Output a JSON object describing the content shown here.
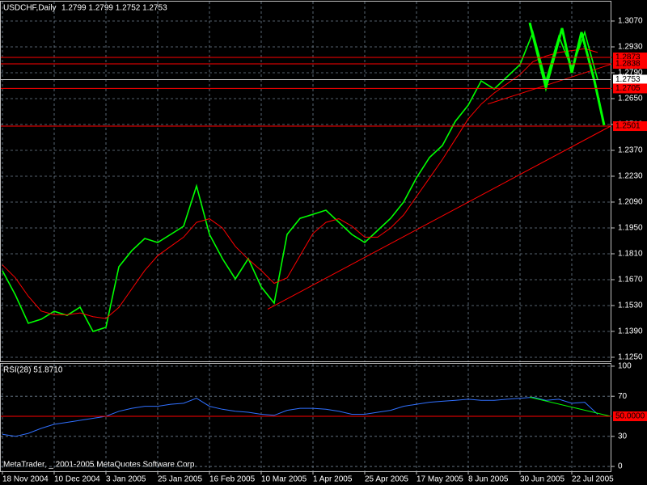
{
  "chart_data": [
    {
      "type": "line",
      "title": "USDCHF,Daily",
      "subtitle": "1.2799 1.2799 1.2752 1.2753",
      "x": [
        0,
        4,
        8,
        12,
        16,
        20,
        24,
        28,
        32,
        36,
        40,
        44,
        48,
        52,
        56,
        60,
        64,
        68,
        72,
        76,
        80,
        84,
        88,
        92,
        96,
        100,
        104,
        108,
        112,
        116,
        120,
        124,
        128,
        132,
        136,
        140,
        144,
        148,
        152,
        156,
        160,
        164,
        168,
        172,
        176,
        180,
        184
      ],
      "series": [
        {
          "color": "#00ff00",
          "values": [
            1.1718,
            1.1587,
            1.1434,
            1.1456,
            1.1499,
            1.1477,
            1.1521,
            1.139,
            1.1412,
            1.174,
            1.1827,
            1.1893,
            1.1871,
            1.1915,
            1.1959,
            1.2177,
            1.1915,
            1.1784,
            1.1674,
            1.1784,
            1.1631,
            1.1543,
            1.1915,
            1.2002,
            1.2024,
            1.2046,
            1.1981,
            1.1915,
            1.1871,
            1.1937,
            1.2002,
            1.209,
            1.2221,
            1.2331,
            1.2396,
            1.2527,
            1.2615,
            1.2746,
            1.2702,
            1.2768,
            1.2834,
            1.3009,
            1.2746,
            1.2987,
            1.2812,
            1.3009,
            1.2753
          ]
        },
        {
          "color": "#ff0000",
          "values": [
            1.175,
            1.168,
            1.158,
            1.15,
            1.148,
            1.148,
            1.149,
            1.147,
            1.146,
            1.152,
            1.162,
            1.172,
            1.18,
            1.185,
            1.19,
            1.198,
            1.2,
            1.195,
            1.185,
            1.178,
            1.172,
            1.165,
            1.168,
            1.18,
            1.192,
            1.198,
            1.2,
            1.196,
            1.19,
            1.19,
            1.195,
            1.202,
            1.212,
            1.222,
            1.232,
            1.243,
            1.254,
            1.262,
            1.268,
            1.273,
            1.278,
            1.285,
            1.288,
            1.29,
            1.291,
            1.292,
            1.29
          ]
        }
      ],
      "lines": [
        {
          "color": "#ff0000",
          "x": [
            82,
            188
          ],
          "values": [
            1.151,
            1.2501
          ]
        },
        {
          "color": "#ff0000",
          "x": [
            150,
            188
          ],
          "values": [
            1.262,
            1.2835
          ]
        },
        {
          "color": "#00ff00",
          "x": [
            163,
            168,
            173,
            176,
            179,
            183,
            186
          ],
          "values": [
            1.3061,
            1.2711,
            1.3031,
            1.279,
            1.3009,
            1.2746,
            1.2506
          ]
        }
      ],
      "levels": [
        {
          "color": "#ff0000",
          "value": 1.2873,
          "label": "1.2873"
        },
        {
          "color": "#ff0000",
          "value": 1.2838,
          "label": "1.2838"
        },
        {
          "color": "#c0c0c0",
          "value": 1.2753,
          "label": "1.2753"
        },
        {
          "color": "#ff0000",
          "value": 1.2705,
          "label": "1.2705"
        },
        {
          "color": "#ff0000",
          "value": 1.2501,
          "label": "1.2501"
        }
      ],
      "xlim": [
        -0.5,
        188.25
      ],
      "ylim": [
        1.1228,
        1.3175
      ],
      "yticks": [
        {
          "value": 1.307,
          "label": "1.3070"
        },
        {
          "value": 1.293,
          "label": "1.2930"
        },
        {
          "value": 1.279,
          "label": "1.2790"
        },
        {
          "value": 1.265,
          "label": "1.2650"
        },
        {
          "value": 1.251,
          "label": "1.2510"
        },
        {
          "value": 1.237,
          "label": "1.2370"
        },
        {
          "value": 1.223,
          "label": "1.2230"
        },
        {
          "value": 1.209,
          "label": "1.2090"
        },
        {
          "value": 1.195,
          "label": "1.1950"
        },
        {
          "value": 1.181,
          "label": "1.1810"
        },
        {
          "value": 1.167,
          "label": "1.1670"
        },
        {
          "value": 1.153,
          "label": "1.1530"
        },
        {
          "value": 1.139,
          "label": "1.1390"
        },
        {
          "value": 1.125,
          "label": "1.1250"
        }
      ],
      "xticks": [
        {
          "value": 0,
          "label": "18 Nov 2004"
        },
        {
          "value": 16,
          "label": "10 Dec 2004"
        },
        {
          "value": 32,
          "label": "3 Jan 2005"
        },
        {
          "value": 48,
          "label": "25 Jan 2005"
        },
        {
          "value": 64,
          "label": "16 Feb 2005"
        },
        {
          "value": 80,
          "label": "10 Mar 2005"
        },
        {
          "value": 96,
          "label": "1 Apr 2005"
        },
        {
          "value": 112,
          "label": "25 Apr 2005"
        },
        {
          "value": 128,
          "label": "17 May 2005"
        },
        {
          "value": 144,
          "label": "8 Jun 2005"
        },
        {
          "value": 160,
          "label": "30 Jun 2005"
        },
        {
          "value": 176,
          "label": "22 Jul 2005"
        }
      ],
      "grid": true
    },
    {
      "type": "line",
      "title": "RSI(28) 51.8710",
      "series": [
        {
          "color": "#3070ff",
          "values": [
            32,
            30,
            33,
            38,
            42,
            44,
            46,
            48,
            50,
            55,
            58,
            60,
            60,
            62,
            63,
            68,
            60,
            57,
            55,
            54,
            52,
            51,
            56,
            58,
            58,
            57,
            55,
            52,
            52,
            54,
            56,
            60,
            62,
            64,
            65,
            66,
            67,
            66,
            66,
            67,
            68,
            69,
            66,
            67,
            63,
            64,
            52
          ]
        }
      ],
      "lines": [
        {
          "color": "#00ff00",
          "x": [
            163,
            188
          ],
          "values": [
            69,
            50
          ]
        }
      ],
      "levels": [
        {
          "color": "#ff0000",
          "value": 50,
          "label": "50.0000"
        }
      ],
      "ylim": [
        -4.8,
        102.4
      ],
      "yticks": [
        100,
        70,
        30,
        0
      ],
      "grid": true
    }
  ],
  "footer": "MetaTrader, _ 2001-2005 MetaQuotes Software Corp."
}
